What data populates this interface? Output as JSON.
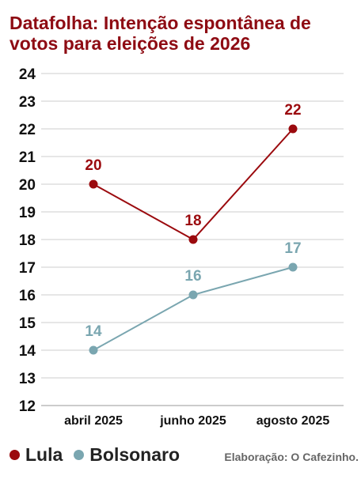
{
  "chart_data": {
    "type": "line",
    "title": [
      "Datafolha: Intenção espontânea de",
      "votos para eleições de 2026"
    ],
    "categories": [
      "abril 2025",
      "junho 2025",
      "agosto 2025"
    ],
    "ylim": [
      12,
      24
    ],
    "yticks": [
      "12",
      "13",
      "14",
      "15",
      "16",
      "17",
      "18",
      "19",
      "20",
      "21",
      "22",
      "23",
      "24"
    ],
    "grid": true,
    "legend_position": "bottom-left",
    "series": [
      {
        "name": "Lula",
        "color": "#9b0a0e",
        "values": [
          20,
          18,
          22
        ],
        "labels": [
          "20",
          "18",
          "22"
        ]
      },
      {
        "name": "Bolsonaro",
        "color": "#7aa6b0",
        "values": [
          14,
          16,
          17
        ],
        "labels": [
          "14",
          "16",
          "17"
        ]
      }
    ]
  },
  "credit": "Elaboração: O Cafezinho.",
  "colors": {
    "title": "#8e0b13",
    "grid": "#cccccc"
  }
}
